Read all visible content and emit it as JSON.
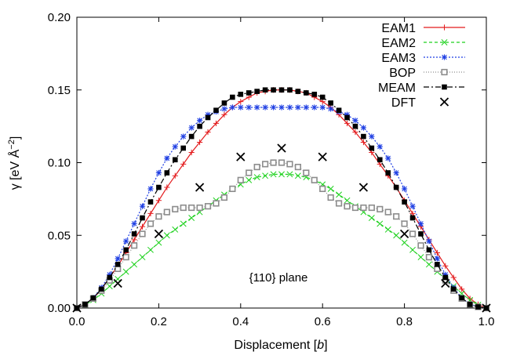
{
  "chart_data": {
    "type": "line",
    "xlabel_main": "Displacement [",
    "xlabel_italic": "b",
    "xlabel_end": "]",
    "ylabel_main": "γ [eV Å",
    "ylabel_sup": "−2",
    "ylabel_end": "]",
    "annotation": "{110} plane",
    "xlim": [
      0,
      1
    ],
    "ylim": [
      0,
      0.2
    ],
    "xticks": [
      0.0,
      0.2,
      0.4,
      0.6,
      0.8,
      1.0
    ],
    "xtick_labels": [
      "0.0",
      "0.2",
      "0.4",
      "0.6",
      "0.8",
      "1.0"
    ],
    "yticks": [
      0.0,
      0.05,
      0.1,
      0.15,
      0.2
    ],
    "ytick_labels": [
      "0.00",
      "0.05",
      "0.10",
      "0.15",
      "0.20"
    ],
    "legend_position": "top-right",
    "x": [
      0,
      0.02,
      0.04,
      0.06,
      0.08,
      0.1,
      0.12,
      0.14,
      0.16,
      0.18,
      0.2,
      0.22,
      0.24,
      0.26,
      0.28,
      0.3,
      0.32,
      0.34,
      0.36,
      0.38,
      0.4,
      0.42,
      0.44,
      0.46,
      0.48,
      0.5,
      0.52,
      0.54,
      0.56,
      0.58,
      0.6,
      0.62,
      0.64,
      0.66,
      0.68,
      0.7,
      0.72,
      0.74,
      0.76,
      0.78,
      0.8,
      0.82,
      0.84,
      0.86,
      0.88,
      0.9,
      0.92,
      0.94,
      0.96,
      0.98,
      1.0
    ],
    "series": [
      {
        "name": "EAM1",
        "color": "#e31a1c",
        "marker": "plus",
        "dash": "",
        "values": [
          0,
          0.0025,
          0.0065,
          0.013,
          0.021,
          0.029,
          0.038,
          0.047,
          0.056,
          0.065,
          0.074,
          0.083,
          0.091,
          0.099,
          0.107,
          0.114,
          0.121,
          0.127,
          0.133,
          0.138,
          0.142,
          0.145,
          0.148,
          0.149,
          0.15,
          0.15,
          0.15,
          0.149,
          0.148,
          0.145,
          0.142,
          0.138,
          0.133,
          0.127,
          0.121,
          0.114,
          0.107,
          0.099,
          0.091,
          0.083,
          0.074,
          0.065,
          0.056,
          0.047,
          0.038,
          0.029,
          0.021,
          0.013,
          0.0065,
          0.0025,
          0
        ]
      },
      {
        "name": "EAM2",
        "color": "#1fd11f",
        "marker": "x",
        "dash": "4,3",
        "values": [
          0,
          0.0022,
          0.0055,
          0.01,
          0.015,
          0.02,
          0.025,
          0.03,
          0.035,
          0.04,
          0.045,
          0.05,
          0.054,
          0.058,
          0.062,
          0.066,
          0.07,
          0.074,
          0.078,
          0.082,
          0.085,
          0.088,
          0.09,
          0.091,
          0.092,
          0.092,
          0.092,
          0.091,
          0.09,
          0.088,
          0.085,
          0.082,
          0.078,
          0.074,
          0.07,
          0.066,
          0.062,
          0.058,
          0.054,
          0.05,
          0.045,
          0.04,
          0.035,
          0.03,
          0.025,
          0.02,
          0.015,
          0.01,
          0.0055,
          0.0022,
          0
        ]
      },
      {
        "name": "EAM3",
        "color": "#1f3fe3",
        "marker": "star",
        "dash": "2,2",
        "values": [
          0,
          0.0025,
          0.007,
          0.014,
          0.023,
          0.034,
          0.046,
          0.058,
          0.07,
          0.082,
          0.093,
          0.103,
          0.111,
          0.118,
          0.124,
          0.129,
          0.133,
          0.135,
          0.137,
          0.138,
          0.138,
          0.138,
          0.138,
          0.138,
          0.138,
          0.138,
          0.138,
          0.138,
          0.138,
          0.138,
          0.138,
          0.137,
          0.135,
          0.133,
          0.129,
          0.124,
          0.118,
          0.111,
          0.103,
          0.093,
          0.082,
          0.07,
          0.058,
          0.046,
          0.034,
          0.023,
          0.014,
          0.007,
          0.0025,
          0.001,
          0
        ]
      },
      {
        "name": "BOP",
        "color": "#8c8c8c",
        "marker": "square-open",
        "dash": "1,2",
        "values": [
          0,
          0.0025,
          0.0065,
          0.012,
          0.019,
          0.027,
          0.035,
          0.043,
          0.051,
          0.058,
          0.063,
          0.066,
          0.068,
          0.069,
          0.069,
          0.069,
          0.07,
          0.072,
          0.076,
          0.082,
          0.088,
          0.093,
          0.097,
          0.099,
          0.1,
          0.1,
          0.099,
          0.097,
          0.093,
          0.088,
          0.082,
          0.076,
          0.072,
          0.07,
          0.069,
          0.069,
          0.069,
          0.068,
          0.066,
          0.063,
          0.058,
          0.051,
          0.043,
          0.035,
          0.027,
          0.019,
          0.012,
          0.0065,
          0.0025,
          0.0008,
          0
        ]
      },
      {
        "name": "MEAM",
        "color": "#000000",
        "marker": "square-filled",
        "dash": "7,3,2,3",
        "values": [
          0,
          0.0025,
          0.007,
          0.013,
          0.021,
          0.03,
          0.04,
          0.051,
          0.062,
          0.073,
          0.083,
          0.093,
          0.102,
          0.11,
          0.118,
          0.125,
          0.131,
          0.136,
          0.141,
          0.145,
          0.147,
          0.148,
          0.149,
          0.15,
          0.15,
          0.15,
          0.15,
          0.149,
          0.148,
          0.147,
          0.145,
          0.141,
          0.136,
          0.131,
          0.125,
          0.118,
          0.11,
          0.102,
          0.093,
          0.083,
          0.073,
          0.062,
          0.051,
          0.04,
          0.03,
          0.021,
          0.013,
          0.007,
          0.0025,
          0.0008,
          0
        ]
      }
    ],
    "dft": {
      "name": "DFT",
      "color": "#000000",
      "marker": "x-big",
      "points": [
        [
          0.0,
          0.0
        ],
        [
          0.1,
          0.017
        ],
        [
          0.2,
          0.051
        ],
        [
          0.3,
          0.083
        ],
        [
          0.4,
          0.104
        ],
        [
          0.5,
          0.11
        ],
        [
          0.6,
          0.104
        ],
        [
          0.7,
          0.083
        ],
        [
          0.8,
          0.051
        ],
        [
          0.9,
          0.017
        ],
        [
          1.0,
          0.0
        ]
      ]
    }
  }
}
